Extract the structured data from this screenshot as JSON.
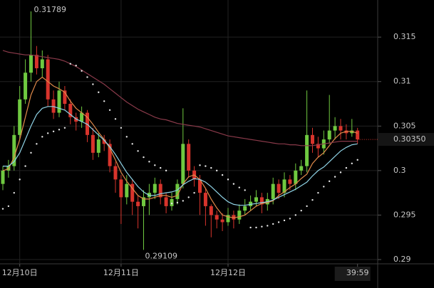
{
  "chart_data": {
    "type": "candlestick",
    "categories": [
      null,
      null,
      null,
      "12月10日",
      null,
      null,
      null,
      null,
      null,
      null,
      null,
      null,
      null,
      null,
      null,
      null,
      null,
      null,
      null,
      null,
      null,
      "12月11日",
      null,
      null,
      null,
      null,
      null,
      null,
      null,
      null,
      null,
      null,
      null,
      null,
      null,
      null,
      null,
      null,
      null,
      null,
      "12月12日",
      null,
      null,
      null,
      null,
      null,
      null,
      null,
      null,
      null,
      null,
      null,
      null,
      null,
      null,
      null,
      null,
      null,
      null,
      null,
      null,
      null,
      null,
      "39:59"
    ],
    "open": [
      0.2985,
      0.3,
      0.3005,
      0.304,
      0.308,
      0.311,
      0.313,
      0.3115,
      0.3125,
      0.308,
      0.3065,
      0.309,
      0.3075,
      0.306,
      0.3055,
      0.3065,
      0.304,
      0.302,
      0.3035,
      0.303,
      0.3005,
      0.299,
      0.297,
      0.2985,
      0.2965,
      0.296,
      0.297,
      0.2975,
      0.2985,
      0.297,
      0.296,
      0.2968,
      0.2985,
      0.303,
      0.3,
      0.299,
      0.2975,
      0.296,
      0.295,
      0.2945,
      0.2942,
      0.295,
      0.2945,
      0.2955,
      0.296,
      0.2965,
      0.297,
      0.2962,
      0.2968,
      0.2985,
      0.2975,
      0.299,
      0.2985,
      0.3,
      0.3005,
      0.304,
      0.303,
      0.3025,
      0.3035,
      0.3045,
      0.305,
      0.3045,
      0.3042,
      0.3045
    ],
    "high": [
      0.3005,
      0.3012,
      0.305,
      0.3095,
      0.3125,
      0.31789,
      0.314,
      0.3135,
      0.313,
      0.309,
      0.31,
      0.3095,
      0.308,
      0.3065,
      0.3072,
      0.3068,
      0.3048,
      0.3042,
      0.304,
      0.3035,
      0.301,
      0.2995,
      0.2995,
      0.299,
      0.2972,
      0.2978,
      0.2985,
      0.2992,
      0.299,
      0.2975,
      0.2975,
      0.299,
      0.307,
      0.3035,
      0.3005,
      0.2995,
      0.298,
      0.2962,
      0.2955,
      0.2952,
      0.2958,
      0.2955,
      0.2962,
      0.2968,
      0.2972,
      0.2978,
      0.2975,
      0.2975,
      0.2992,
      0.299,
      0.2998,
      0.2995,
      0.3008,
      0.3012,
      0.309,
      0.3048,
      0.3038,
      0.3045,
      0.3085,
      0.306,
      0.3058,
      0.3052,
      0.3058,
      0.3048
    ],
    "low": [
      0.2978,
      0.2992,
      0.3,
      0.3035,
      0.3075,
      0.31,
      0.3108,
      0.3105,
      0.3072,
      0.3058,
      0.306,
      0.3068,
      0.3052,
      0.3045,
      0.3048,
      0.3032,
      0.3012,
      0.3015,
      0.3022,
      0.2998,
      0.2975,
      0.294,
      0.2962,
      0.295,
      0.2935,
      0.29109,
      0.295,
      0.2968,
      0.2962,
      0.2952,
      0.2955,
      0.2962,
      0.298,
      0.2992,
      0.2982,
      0.295,
      0.2938,
      0.2925,
      0.2935,
      0.2932,
      0.2938,
      0.2935,
      0.294,
      0.295,
      0.2955,
      0.296,
      0.2952,
      0.2955,
      0.2962,
      0.2968,
      0.297,
      0.2978,
      0.2978,
      0.2995,
      0.2998,
      0.302,
      0.3015,
      0.3018,
      0.303,
      0.3035,
      0.3035,
      0.3035,
      0.3038,
      0.303
    ],
    "close": [
      0.3,
      0.3005,
      0.304,
      0.308,
      0.311,
      0.313,
      0.3115,
      0.3125,
      0.308,
      0.3065,
      0.309,
      0.3075,
      0.306,
      0.3055,
      0.3065,
      0.304,
      0.302,
      0.3035,
      0.303,
      0.3005,
      0.299,
      0.297,
      0.2985,
      0.2965,
      0.296,
      0.297,
      0.2975,
      0.2985,
      0.297,
      0.296,
      0.2968,
      0.2985,
      0.303,
      0.3,
      0.299,
      0.2975,
      0.296,
      0.295,
      0.2945,
      0.2942,
      0.295,
      0.2945,
      0.2955,
      0.296,
      0.2965,
      0.297,
      0.2962,
      0.2968,
      0.2985,
      0.2975,
      0.299,
      0.2985,
      0.3,
      0.3005,
      0.304,
      0.303,
      0.3025,
      0.3035,
      0.3045,
      0.305,
      0.3045,
      0.3042,
      0.3045,
      0.3035
    ],
    "up_color": "#6fc940",
    "down_color": "#d8342c",
    "series": [
      {
        "color": "#e08a4a",
        "style": "line",
        "values": [
          0.3,
          0.3002,
          0.3015,
          0.3035,
          0.306,
          0.3085,
          0.31,
          0.3105,
          0.31,
          0.3095,
          0.3092,
          0.3088,
          0.3078,
          0.307,
          0.3065,
          0.306,
          0.3052,
          0.3043,
          0.3035,
          0.3025,
          0.3012,
          0.2998,
          0.2988,
          0.298,
          0.2972,
          0.2968,
          0.2968,
          0.297,
          0.2972,
          0.2972,
          0.297,
          0.2972,
          0.2985,
          0.2993,
          0.2995,
          0.299,
          0.298,
          0.2968,
          0.2958,
          0.295,
          0.2948,
          0.2947,
          0.2948,
          0.295,
          0.2955,
          0.296,
          0.2963,
          0.2964,
          0.2966,
          0.2972,
          0.2976,
          0.2981,
          0.2985,
          0.2991,
          0.2996,
          0.3008,
          0.3015,
          0.302,
          0.3028,
          0.3036,
          0.3042,
          0.3044,
          0.3044,
          0.3042
        ]
      },
      {
        "color": "#8fd3e6",
        "style": "line",
        "values": [
          0.3005,
          0.3005,
          0.301,
          0.302,
          0.3035,
          0.305,
          0.3063,
          0.307,
          0.3072,
          0.3072,
          0.307,
          0.3068,
          0.3063,
          0.3058,
          0.3055,
          0.3052,
          0.3046,
          0.304,
          0.3034,
          0.3027,
          0.3018,
          0.3008,
          0.2998,
          0.299,
          0.2982,
          0.2976,
          0.2972,
          0.2972,
          0.2974,
          0.2975,
          0.2976,
          0.2978,
          0.2984,
          0.2988,
          0.2991,
          0.299,
          0.2987,
          0.2982,
          0.2976,
          0.297,
          0.2965,
          0.2962,
          0.2961,
          0.2961,
          0.2962,
          0.2963,
          0.2964,
          0.2965,
          0.2967,
          0.297,
          0.2973,
          0.2976,
          0.2979,
          0.2983,
          0.2987,
          0.2994,
          0.3,
          0.3004,
          0.301,
          0.3016,
          0.3022,
          0.3026,
          0.3029,
          0.303
        ]
      },
      {
        "color": "#8a3a4a",
        "style": "line",
        "values": [
          0.3135,
          0.3133,
          0.3132,
          0.3131,
          0.313,
          0.313,
          0.3129,
          0.3128,
          0.3127,
          0.3126,
          0.3125,
          0.3123,
          0.312,
          0.3117,
          0.3113,
          0.3109,
          0.3105,
          0.3101,
          0.3097,
          0.3092,
          0.3087,
          0.3082,
          0.3077,
          0.3073,
          0.3069,
          0.3066,
          0.3063,
          0.306,
          0.3058,
          0.3057,
          0.3055,
          0.3053,
          0.3052,
          0.3051,
          0.305,
          0.3049,
          0.3047,
          0.3045,
          0.3043,
          0.3041,
          0.3039,
          0.3038,
          0.3037,
          0.3036,
          0.3035,
          0.3034,
          0.3033,
          0.3032,
          0.3031,
          0.303,
          0.303,
          0.3029,
          0.3029,
          0.3028,
          0.3028,
          0.3028,
          0.3029,
          0.303,
          0.3031,
          0.3032,
          0.3033,
          0.3033,
          0.3033,
          0.3033
        ]
      },
      {
        "color": "#e8e8e8",
        "style": "dots",
        "values": [
          0.2957,
          0.296,
          0.2975,
          0.299,
          0.3005,
          0.302,
          0.303,
          0.3038,
          0.3042,
          0.3044,
          0.3046,
          0.3048,
          0.312,
          0.3118,
          0.3112,
          0.3105,
          0.3097,
          0.3088,
          0.3078,
          0.3068,
          0.3058,
          0.3048,
          0.3038,
          0.303,
          0.3022,
          0.3015,
          0.301,
          0.3006,
          0.3003,
          0.3,
          0.2963,
          0.2964,
          0.2966,
          0.297,
          0.2975,
          0.3006,
          0.3005,
          0.3003,
          0.3,
          0.2995,
          0.299,
          0.2985,
          0.2981,
          0.2978,
          0.2936,
          0.2936,
          0.2937,
          0.2938,
          0.294,
          0.2942,
          0.2944,
          0.2946,
          0.295,
          0.2955,
          0.296,
          0.2967,
          0.2975,
          0.2982,
          0.2988,
          0.2993,
          0.2998,
          0.3003,
          0.3008,
          0.3012
        ]
      }
    ],
    "ylim": [
      0.28952,
      0.31917
    ],
    "yticks": [
      0.29,
      0.295,
      0.3,
      0.305,
      0.31,
      0.315
    ],
    "last_price": {
      "value": 0.3035,
      "label": "0.30350"
    },
    "max_label": 0.31789,
    "min_label": 0.29109,
    "grid": true
  }
}
